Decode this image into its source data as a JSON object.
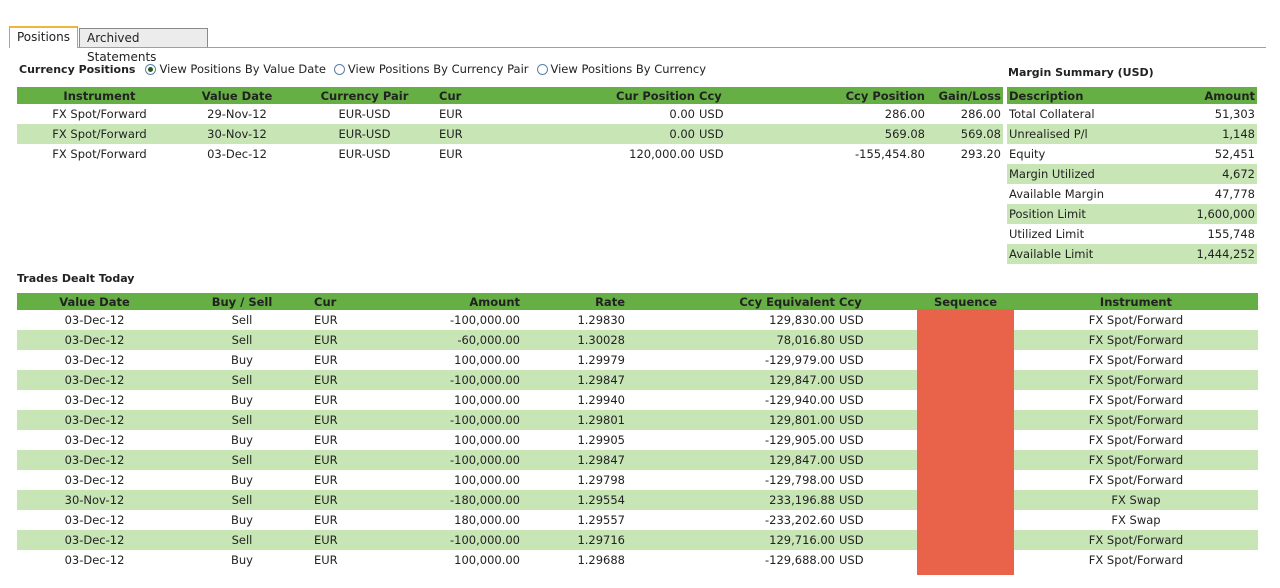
{
  "tabs": [
    {
      "label": "Positions",
      "active": true
    },
    {
      "label": "Archived Statements",
      "active": false
    }
  ],
  "currency_positions": {
    "title": "Currency Positions",
    "view_options": [
      {
        "label": "View Positions By Value Date",
        "selected": true
      },
      {
        "label": "View Positions By Currency Pair",
        "selected": false
      },
      {
        "label": "View Positions By Currency",
        "selected": false
      }
    ],
    "columns": [
      "Instrument",
      "Value Date",
      "Currency Pair",
      "Cur",
      "Cur Position",
      "Ccy",
      "Ccy Position",
      "Gain/Loss"
    ],
    "rows": [
      {
        "instrument": "FX Spot/Forward",
        "value_date": "29-Nov-12",
        "pair": "EUR-USD",
        "cur": "EUR",
        "cur_position": "0.00",
        "ccy": "USD",
        "ccy_position": "286.00",
        "gain_loss": "286.00"
      },
      {
        "instrument": "FX Spot/Forward",
        "value_date": "30-Nov-12",
        "pair": "EUR-USD",
        "cur": "EUR",
        "cur_position": "0.00",
        "ccy": "USD",
        "ccy_position": "569.08",
        "gain_loss": "569.08"
      },
      {
        "instrument": "FX Spot/Forward",
        "value_date": "03-Dec-12",
        "pair": "EUR-USD",
        "cur": "EUR",
        "cur_position": "120,000.00",
        "ccy": "USD",
        "ccy_position": "-155,454.80",
        "gain_loss": "293.20"
      }
    ]
  },
  "margin_summary": {
    "title": "Margin Summary (USD)",
    "columns": [
      "Description",
      "Amount"
    ],
    "rows": [
      {
        "description": "Total Collateral",
        "amount": "51,303"
      },
      {
        "description": "Unrealised P/l",
        "amount": "1,148"
      },
      {
        "description": "Equity",
        "amount": "52,451"
      },
      {
        "description": "Margin Utilized",
        "amount": "4,672"
      },
      {
        "description": "Available Margin",
        "amount": "47,778"
      },
      {
        "description": "Position Limit",
        "amount": "1,600,000"
      },
      {
        "description": "Utilized Limit",
        "amount": "155,748"
      },
      {
        "description": "Available Limit",
        "amount": "1,444,252"
      }
    ]
  },
  "trades_today": {
    "title": "Trades Dealt Today",
    "columns": [
      "Value Date",
      "Buy / Sell",
      "Cur",
      "Amount",
      "Rate",
      "Ccy Equivalent",
      "Ccy",
      "Sequence",
      "Instrument"
    ],
    "rows": [
      {
        "value_date": "03-Dec-12",
        "side": "Sell",
        "cur": "EUR",
        "amount": "-100,000.00",
        "rate": "1.29830",
        "ccy_equiv": "129,830.00",
        "ccy": "USD",
        "instrument": "FX Spot/Forward"
      },
      {
        "value_date": "03-Dec-12",
        "side": "Sell",
        "cur": "EUR",
        "amount": "-60,000.00",
        "rate": "1.30028",
        "ccy_equiv": "78,016.80",
        "ccy": "USD",
        "instrument": "FX Spot/Forward"
      },
      {
        "value_date": "03-Dec-12",
        "side": "Buy",
        "cur": "EUR",
        "amount": "100,000.00",
        "rate": "1.29979",
        "ccy_equiv": "-129,979.00",
        "ccy": "USD",
        "instrument": "FX Spot/Forward"
      },
      {
        "value_date": "03-Dec-12",
        "side": "Sell",
        "cur": "EUR",
        "amount": "-100,000.00",
        "rate": "1.29847",
        "ccy_equiv": "129,847.00",
        "ccy": "USD",
        "instrument": "FX Spot/Forward"
      },
      {
        "value_date": "03-Dec-12",
        "side": "Buy",
        "cur": "EUR",
        "amount": "100,000.00",
        "rate": "1.29940",
        "ccy_equiv": "-129,940.00",
        "ccy": "USD",
        "instrument": "FX Spot/Forward"
      },
      {
        "value_date": "03-Dec-12",
        "side": "Sell",
        "cur": "EUR",
        "amount": "-100,000.00",
        "rate": "1.29801",
        "ccy_equiv": "129,801.00",
        "ccy": "USD",
        "instrument": "FX Spot/Forward"
      },
      {
        "value_date": "03-Dec-12",
        "side": "Buy",
        "cur": "EUR",
        "amount": "100,000.00",
        "rate": "1.29905",
        "ccy_equiv": "-129,905.00",
        "ccy": "USD",
        "instrument": "FX Spot/Forward"
      },
      {
        "value_date": "03-Dec-12",
        "side": "Sell",
        "cur": "EUR",
        "amount": "-100,000.00",
        "rate": "1.29847",
        "ccy_equiv": "129,847.00",
        "ccy": "USD",
        "instrument": "FX Spot/Forward"
      },
      {
        "value_date": "03-Dec-12",
        "side": "Buy",
        "cur": "EUR",
        "amount": "100,000.00",
        "rate": "1.29798",
        "ccy_equiv": "-129,798.00",
        "ccy": "USD",
        "instrument": "FX Spot/Forward"
      },
      {
        "value_date": "30-Nov-12",
        "side": "Sell",
        "cur": "EUR",
        "amount": "-180,000.00",
        "rate": "1.29554",
        "ccy_equiv": "233,196.88",
        "ccy": "USD",
        "instrument": "FX Swap"
      },
      {
        "value_date": "03-Dec-12",
        "side": "Buy",
        "cur": "EUR",
        "amount": "180,000.00",
        "rate": "1.29557",
        "ccy_equiv": "-233,202.60",
        "ccy": "USD",
        "instrument": "FX Swap"
      },
      {
        "value_date": "03-Dec-12",
        "side": "Sell",
        "cur": "EUR",
        "amount": "-100,000.00",
        "rate": "1.29716",
        "ccy_equiv": "129,716.00",
        "ccy": "USD",
        "instrument": "FX Spot/Forward"
      },
      {
        "value_date": "03-Dec-12",
        "side": "Buy",
        "cur": "EUR",
        "amount": "100,000.00",
        "rate": "1.29688",
        "ccy_equiv": "-129,688.00",
        "ccy": "USD",
        "instrument": "FX Spot/Forward"
      }
    ]
  },
  "colors": {
    "header_green": "#66af45",
    "row_alt_green": "#c8e6b5",
    "redaction": "#e8634a",
    "active_tab_accent": "#f3b43a"
  }
}
